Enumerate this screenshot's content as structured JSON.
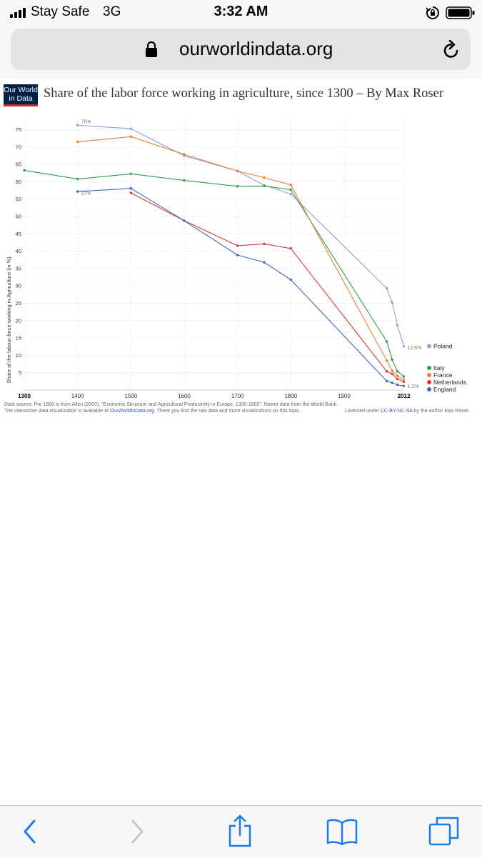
{
  "status_bar": {
    "carrier": "Stay Safe",
    "network": "3G",
    "time": "3:32 AM",
    "icons": [
      "signal-bars-icon",
      "orientation-lock-icon",
      "battery-icon"
    ]
  },
  "browser": {
    "url": "ourworldindata.org",
    "icons": [
      "padlock-icon",
      "reload-icon"
    ]
  },
  "logo": {
    "line1": "Our World",
    "line2": "in Data"
  },
  "title": "Share of the labor force working in agriculture, since 1300 – By Max Roser",
  "chart_data": {
    "type": "line",
    "title": "Share of the labor force working in agriculture, since 1300 – By Max Roser",
    "xlabel": "",
    "ylabel": "Share of the labour force working in Agriculture (in %)",
    "xlim": [
      1300,
      2015
    ],
    "ylim": [
      0,
      78
    ],
    "grid": true,
    "legend_placement": "right",
    "x_ticks": [
      "1300",
      "1400",
      "1500",
      "1600",
      "1700",
      "1800",
      "1900",
      "2012"
    ],
    "y_ticks": [
      "5",
      "10",
      "15",
      "20",
      "25",
      "30",
      "35",
      "40",
      "45",
      "50",
      "55",
      "60",
      "65",
      "70",
      "75"
    ],
    "series": [
      {
        "name": "Poland",
        "color": "#8ea1d3",
        "x": [
          1400,
          1500,
          1600,
          1700,
          1750,
          1800,
          1980,
          1990,
          2000,
          2012
        ],
        "y": [
          76.3,
          75.3,
          67.5,
          63.1,
          59.0,
          56.5,
          29.3,
          25.3,
          18.7,
          12.6
        ]
      },
      {
        "name": "Italy",
        "color": "#2f9d46",
        "x": [
          1300,
          1400,
          1500,
          1600,
          1700,
          1750,
          1800,
          1980,
          1990,
          2000,
          2012
        ],
        "y": [
          63.3,
          60.8,
          62.3,
          60.4,
          58.7,
          58.8,
          57.7,
          14.0,
          8.8,
          5.4,
          3.9
        ]
      },
      {
        "name": "France",
        "color": "#ee7d37",
        "x": [
          1400,
          1500,
          1600,
          1700,
          1750,
          1800,
          1980,
          1990,
          2000,
          2012
        ],
        "y": [
          71.5,
          73.0,
          67.9,
          63.1,
          61.2,
          59.1,
          8.5,
          5.6,
          4.1,
          3.0
        ]
      },
      {
        "name": "Netherlands",
        "color": "#d93a3a",
        "x": [
          1500,
          1600,
          1700,
          1750,
          1800,
          1980,
          1990,
          2000,
          2012
        ],
        "y": [
          56.8,
          48.8,
          41.6,
          42.1,
          40.8,
          5.4,
          4.7,
          3.2,
          2.4
        ]
      },
      {
        "name": "England",
        "color": "#3f66c4",
        "x": [
          1400,
          1500,
          1600,
          1700,
          1750,
          1800,
          1980,
          1990,
          2000,
          2012
        ],
        "y": [
          57.2,
          58.1,
          48.8,
          38.9,
          36.8,
          31.8,
          2.6,
          2.1,
          1.5,
          1.2
        ]
      }
    ],
    "annotations": [
      {
        "text": "76%",
        "x": 1400,
        "y": 76.3
      },
      {
        "text": "57%",
        "x": 1400,
        "y": 57.2
      },
      {
        "text": "12.6%",
        "x": 2012,
        "y": 12.6
      },
      {
        "text": "1.2%",
        "x": 2012,
        "y": 1.2
      }
    ]
  },
  "footer": {
    "source": "Data source: Pre 1800 is from Allen (2000), \"Economic Structure and Agricultural Productivity in Europe, 1300-1800\". Newer data from the World Bank.",
    "visualization_prefix": "The interactive data visualization is available at ",
    "visualization_link": "OurWorldinData.org",
    "visualization_suffix": ". There you find the raw data and more visualizations on this topic.",
    "license_prefix": "Licensed under ",
    "license_link": "CC-BY-NC-SA",
    "license_suffix": " by the author Max Roser."
  },
  "toolbar": {
    "icons": [
      "back-icon",
      "forward-icon",
      "share-icon",
      "bookmarks-icon",
      "tabs-icon"
    ],
    "accent_color": "#1a7cf5",
    "disabled_color": "#c4c4c6"
  }
}
